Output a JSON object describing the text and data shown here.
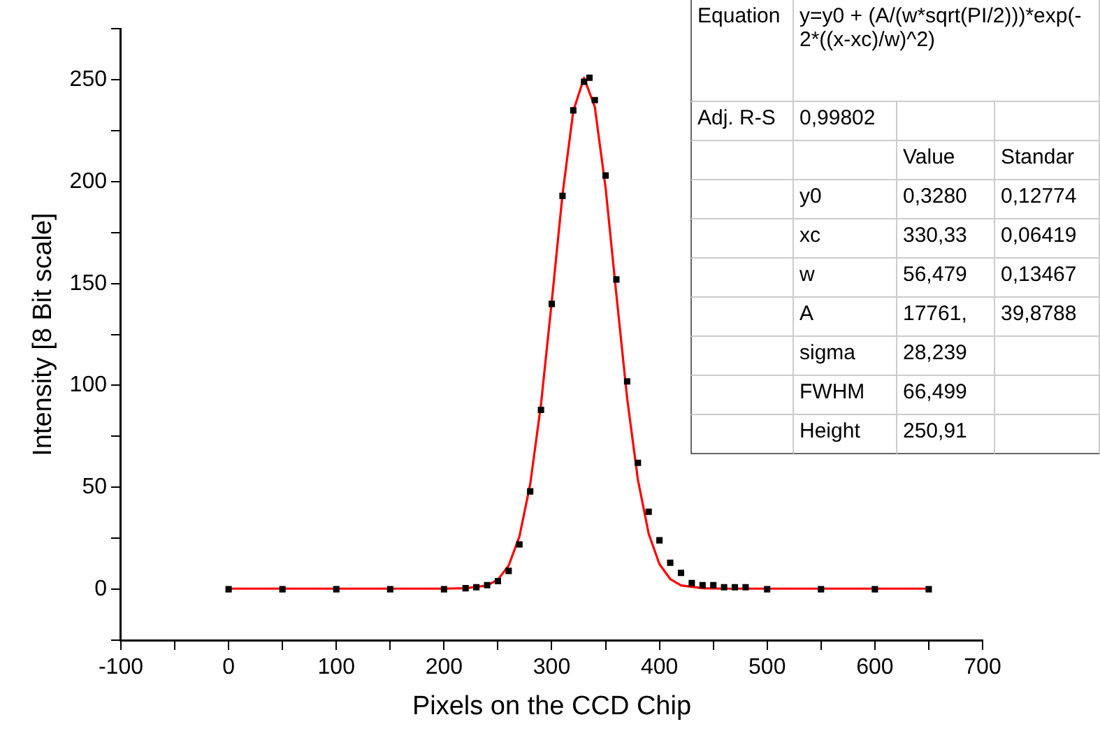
{
  "chart_data": {
    "type": "scatter",
    "xlabel": "Pixels on the CCD Chip",
    "ylabel": "Intensity [8 Bit scale]",
    "xlim": [
      -100,
      700
    ],
    "xticks": [
      -100,
      {
        "value": -50,
        "label": null
      },
      0,
      {
        "value": 50,
        "label": null
      },
      100,
      {
        "value": 150,
        "label": null
      },
      200,
      {
        "value": 250,
        "label": null
      },
      300,
      {
        "value": 350,
        "label": null
      },
      400,
      {
        "value": 450,
        "label": null
      },
      500,
      {
        "value": 550,
        "label": null
      },
      600,
      {
        "value": 650,
        "label": null
      },
      700
    ],
    "ylim": [
      -25,
      275
    ],
    "yticks": [
      {
        "value": -25,
        "label": null
      },
      0,
      {
        "value": 25,
        "label": null
      },
      50,
      {
        "value": 75,
        "label": null
      },
      100,
      {
        "value": 125,
        "label": null
      },
      150,
      {
        "value": 175,
        "label": null
      },
      200,
      {
        "value": 225,
        "label": null
      },
      250,
      {
        "value": 275,
        "label": null
      }
    ],
    "grid": false,
    "legend": false,
    "series": [
      {
        "marker": "square",
        "color": "#000000",
        "x": [
          0,
          50,
          100,
          150,
          200,
          220,
          230,
          240,
          250,
          260,
          270,
          280,
          290,
          300,
          310,
          320,
          330,
          335,
          340,
          350,
          360,
          370,
          380,
          390,
          400,
          410,
          420,
          430,
          440,
          450,
          460,
          470,
          480,
          500,
          550,
          600,
          650
        ],
        "values": [
          0,
          0,
          0,
          0,
          0,
          0.5,
          1,
          2,
          4,
          9,
          22,
          48,
          88,
          140,
          193,
          235,
          249,
          251,
          240,
          203,
          152,
          102,
          62,
          38,
          24,
          13,
          8,
          3,
          2,
          2,
          1,
          1,
          1,
          0,
          0,
          0,
          0
        ]
      },
      {
        "type": "line",
        "marker": "none",
        "color": "#ff0000",
        "x": [
          0,
          200,
          220,
          240,
          250,
          260,
          270,
          280,
          290,
          300,
          310,
          320,
          330,
          340,
          350,
          360,
          370,
          380,
          390,
          400,
          410,
          420,
          440,
          460,
          650
        ],
        "values": [
          0.3,
          0.3,
          0.5,
          1.8,
          4.7,
          11.6,
          25.9,
          51.5,
          90.7,
          141.1,
          193.7,
          234.7,
          250.9,
          236.6,
          196.9,
          144.6,
          93.7,
          53.7,
          27.2,
          12.3,
          5,
          1.9,
          0.5,
          0.3,
          0.3
        ]
      }
    ],
    "annotations": [
      "Equation",
      "y=y0 + (A/(w*sqrt(PI/2)))*exp(-2*((x-xc)/w)^2)",
      "Adj. R-S",
      "0,99802",
      "Value",
      "Standar",
      "y0",
      "0,3280",
      "0,12774",
      "xc",
      "330,33",
      "0,06419",
      "w",
      "56,479",
      "0,13467",
      "A",
      "17761,",
      "39,8788",
      "sigma",
      "28,239",
      "FWHM",
      "66,499",
      "Height",
      "250,91"
    ]
  }
}
